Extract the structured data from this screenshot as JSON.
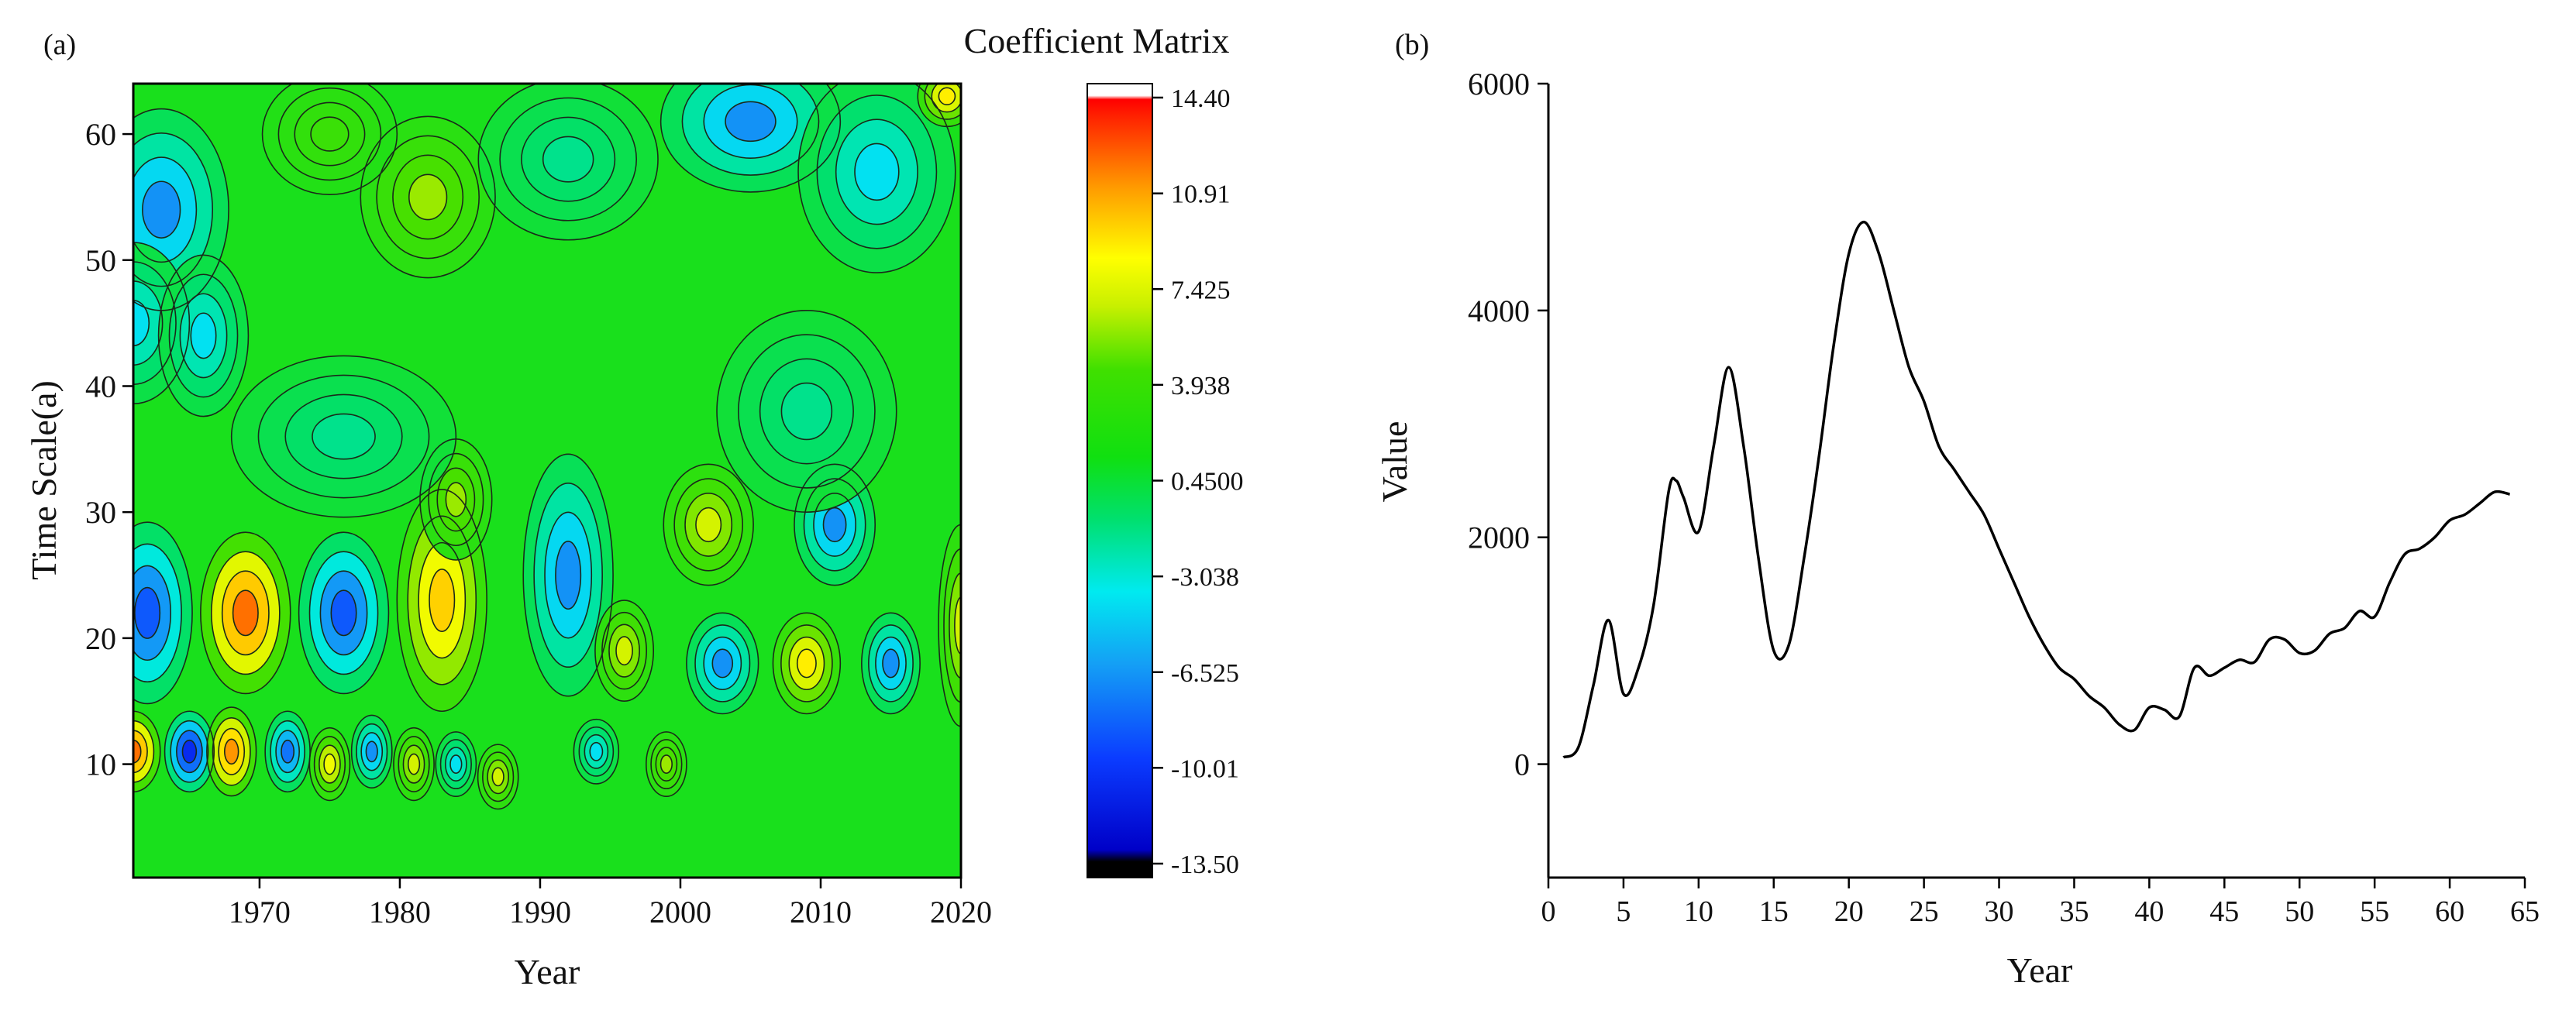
{
  "panels": {
    "a": {
      "label": "(a)"
    },
    "b": {
      "label": "(b)"
    }
  },
  "chart_data": [
    {
      "type": "heatmap",
      "panel": "(a)",
      "title": "Coefficient Matrix",
      "xlabel": "Year",
      "ylabel": "Time Scale(a)",
      "xlim": [
        1961,
        2020
      ],
      "ylim": [
        1,
        64
      ],
      "xticks": [
        1970,
        1980,
        1990,
        2000,
        2010,
        2020
      ],
      "yticks": [
        10,
        20,
        30,
        40,
        50,
        60
      ],
      "colorbar": {
        "min": -13.5,
        "max": 14.4,
        "ticks": [
          14.4,
          10.91,
          7.425,
          3.938,
          0.45,
          -3.038,
          -6.525,
          -10.01,
          -13.5
        ],
        "tick_labels": [
          "14.40",
          "10.91",
          "7.425",
          "3.938",
          "0.4500",
          "-3.038",
          "-6.525",
          "-10.01",
          "-13.50"
        ]
      },
      "features": [
        {
          "year": 1962,
          "scale": 22,
          "value": -9,
          "sx": 2.0,
          "sy": 4.5
        },
        {
          "year": 1969,
          "scale": 22,
          "value": 12,
          "sx": 2.0,
          "sy": 4.0
        },
        {
          "year": 1976,
          "scale": 22,
          "value": -9,
          "sx": 2.0,
          "sy": 4.0
        },
        {
          "year": 1983,
          "scale": 23,
          "value": 9,
          "sx": 2.0,
          "sy": 5.5
        },
        {
          "year": 1984,
          "scale": 31,
          "value": 5,
          "sx": 1.6,
          "sy": 3.0
        },
        {
          "year": 1992,
          "scale": 25,
          "value": -7,
          "sx": 2.0,
          "sy": 6.0
        },
        {
          "year": 1996,
          "scale": 19,
          "value": 6,
          "sx": 1.3,
          "sy": 2.5
        },
        {
          "year": 2002,
          "scale": 29,
          "value": 6,
          "sx": 2.0,
          "sy": 3.0
        },
        {
          "year": 2003,
          "scale": 18,
          "value": -7,
          "sx": 1.6,
          "sy": 2.5
        },
        {
          "year": 2009,
          "scale": 18,
          "value": 8,
          "sx": 1.5,
          "sy": 2.5
        },
        {
          "year": 2011,
          "scale": 29,
          "value": -7,
          "sx": 1.8,
          "sy": 3.0
        },
        {
          "year": 2015,
          "scale": 18,
          "value": -7,
          "sx": 1.3,
          "sy": 2.5
        },
        {
          "year": 2020,
          "scale": 21,
          "value": 6,
          "sx": 1.0,
          "sy": 5.0
        },
        {
          "year": 1961,
          "scale": 11,
          "value": 12,
          "sx": 1.2,
          "sy": 2.0
        },
        {
          "year": 1965,
          "scale": 11,
          "value": -11,
          "sx": 1.1,
          "sy": 2.0
        },
        {
          "year": 1968,
          "scale": 11,
          "value": 11,
          "sx": 1.1,
          "sy": 2.2
        },
        {
          "year": 1972,
          "scale": 11,
          "value": -8,
          "sx": 1.0,
          "sy": 2.0
        },
        {
          "year": 1975,
          "scale": 10,
          "value": 7,
          "sx": 0.9,
          "sy": 1.8
        },
        {
          "year": 1978,
          "scale": 11,
          "value": -7,
          "sx": 0.9,
          "sy": 1.8
        },
        {
          "year": 1981,
          "scale": 10,
          "value": 6,
          "sx": 0.9,
          "sy": 1.8
        },
        {
          "year": 1984,
          "scale": 10,
          "value": -5,
          "sx": 0.9,
          "sy": 1.6
        },
        {
          "year": 1987,
          "scale": 9,
          "value": 6,
          "sx": 0.9,
          "sy": 1.6
        },
        {
          "year": 1994,
          "scale": 11,
          "value": -5,
          "sx": 1.0,
          "sy": 1.6
        },
        {
          "year": 1999,
          "scale": 10,
          "value": 5,
          "sx": 0.9,
          "sy": 1.6
        },
        {
          "year": 1963,
          "scale": 54,
          "value": -7,
          "sx": 3.0,
          "sy": 5.0
        },
        {
          "year": 1961,
          "scale": 45,
          "value": -5,
          "sx": 2.5,
          "sy": 4.0
        },
        {
          "year": 1966,
          "scale": 44,
          "value": -5,
          "sx": 2.0,
          "sy": 4.0
        },
        {
          "year": 1976,
          "scale": 36,
          "value": -3,
          "sx": 5.0,
          "sy": 4.0
        },
        {
          "year": 1982,
          "scale": 55,
          "value": 5,
          "sx": 3.0,
          "sy": 4.0
        },
        {
          "year": 1992,
          "scale": 58,
          "value": -3,
          "sx": 4.0,
          "sy": 4.0
        },
        {
          "year": 2005,
          "scale": 61,
          "value": -7,
          "sx": 4.0,
          "sy": 3.5
        },
        {
          "year": 2014,
          "scale": 57,
          "value": -5,
          "sx": 3.5,
          "sy": 5.0
        },
        {
          "year": 2019,
          "scale": 63,
          "value": 8,
          "sx": 1.3,
          "sy": 1.5
        },
        {
          "year": 2009,
          "scale": 38,
          "value": -3,
          "sx": 4.0,
          "sy": 5.0
        },
        {
          "year": 1975,
          "scale": 60,
          "value": 3,
          "sx": 3.0,
          "sy": 3.0
        }
      ]
    },
    {
      "type": "line",
      "panel": "(b)",
      "xlabel": "Year",
      "ylabel": "Value",
      "xlim": [
        0,
        65
      ],
      "ylim": [
        -1000,
        6000
      ],
      "xticks": [
        0,
        5,
        10,
        15,
        20,
        25,
        30,
        35,
        40,
        45,
        50,
        55,
        60,
        65
      ],
      "yticks": [
        0,
        2000,
        4000,
        6000
      ],
      "series": [
        {
          "name": "Value",
          "x": [
            1,
            2,
            3,
            4,
            5,
            6,
            7,
            8,
            8.5,
            9,
            10,
            11,
            12,
            13,
            14,
            15,
            16,
            17,
            18,
            19,
            20,
            21,
            22,
            23,
            24,
            25,
            26,
            27,
            28,
            29,
            30,
            31,
            32,
            33,
            34,
            35,
            36,
            37,
            38,
            39,
            40,
            41,
            42,
            43,
            44,
            45,
            46,
            47,
            48,
            49,
            50,
            51,
            52,
            53,
            54,
            55,
            56,
            57,
            58,
            59,
            60,
            61,
            62,
            63,
            64
          ],
          "y": [
            60,
            150,
            700,
            1270,
            620,
            850,
            1400,
            2400,
            2500,
            2350,
            2050,
            2800,
            3500,
            2800,
            1800,
            1000,
            1050,
            1800,
            2700,
            3700,
            4500,
            4780,
            4500,
            4000,
            3500,
            3200,
            2800,
            2600,
            2400,
            2200,
            1900,
            1600,
            1300,
            1050,
            850,
            750,
            600,
            500,
            350,
            300,
            500,
            480,
            420,
            850,
            780,
            850,
            920,
            900,
            1100,
            1100,
            980,
            1000,
            1150,
            1200,
            1350,
            1300,
            1600,
            1850,
            1900,
            2000,
            2150,
            2200,
            2300,
            2400,
            2380
          ]
        }
      ]
    }
  ]
}
